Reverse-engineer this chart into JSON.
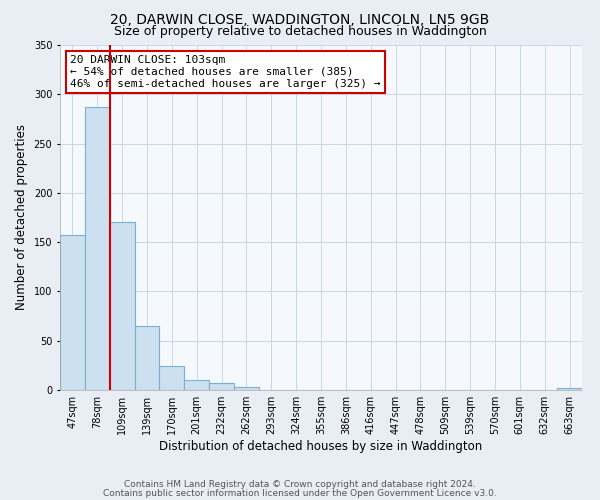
{
  "title_line1": "20, DARWIN CLOSE, WADDINGTON, LINCOLN, LN5 9GB",
  "title_line2": "Size of property relative to detached houses in Waddington",
  "xlabel": "Distribution of detached houses by size in Waddington",
  "ylabel": "Number of detached properties",
  "bar_labels": [
    "47sqm",
    "78sqm",
    "109sqm",
    "139sqm",
    "170sqm",
    "201sqm",
    "232sqm",
    "262sqm",
    "293sqm",
    "324sqm",
    "355sqm",
    "386sqm",
    "416sqm",
    "447sqm",
    "478sqm",
    "509sqm",
    "539sqm",
    "570sqm",
    "601sqm",
    "632sqm",
    "663sqm"
  ],
  "bar_heights": [
    157,
    287,
    170,
    65,
    24,
    10,
    7,
    3,
    0,
    0,
    0,
    0,
    0,
    0,
    0,
    0,
    0,
    0,
    0,
    0,
    2
  ],
  "bar_color": "#cce0f0",
  "bar_edge_color": "#7ab0d4",
  "vline_x_index": 2,
  "vline_color": "#cc0000",
  "annotation_text": "20 DARWIN CLOSE: 103sqm\n← 54% of detached houses are smaller (385)\n46% of semi-detached houses are larger (325) →",
  "annotation_box_edge": "#cc0000",
  "annotation_box_face": "#ffffff",
  "ylim": [
    0,
    350
  ],
  "yticks": [
    0,
    50,
    100,
    150,
    200,
    250,
    300,
    350
  ],
  "footer_line1": "Contains HM Land Registry data © Crown copyright and database right 2024.",
  "footer_line2": "Contains public sector information licensed under the Open Government Licence v3.0.",
  "background_color": "#e8eef4",
  "plot_bg_color": "#f5f8fc",
  "grid_color": "#c8d8e8",
  "title_fontsize": 10,
  "subtitle_fontsize": 9,
  "axis_label_fontsize": 8.5,
  "tick_fontsize": 7,
  "annotation_fontsize": 8,
  "footer_fontsize": 6.5
}
